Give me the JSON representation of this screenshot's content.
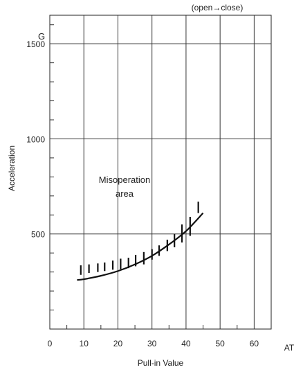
{
  "chart_data": {
    "type": "line",
    "title": "",
    "note": "(open→close)",
    "xlabel": "Pull-in Value",
    "ylabel": "Acceleration",
    "x_unit": "AT",
    "y_unit": "G",
    "xlim": [
      0,
      65
    ],
    "ylim": [
      0,
      1650
    ],
    "x_ticks": [
      0,
      10,
      20,
      30,
      40,
      50,
      60
    ],
    "y_ticks": [
      500,
      1000,
      1500
    ],
    "y_minor_step": 100,
    "x_minor_step": 5,
    "grid": true,
    "annotation": {
      "lines": [
        "Misoperation",
        "area"
      ],
      "x": 20,
      "y": 790
    },
    "series": [
      {
        "x": [
          8,
          10,
          15,
          20,
          25,
          30,
          35,
          40,
          45
        ],
        "values": [
          258,
          262,
          280,
          305,
          340,
          385,
          445,
          515,
          610
        ]
      }
    ],
    "hatch_marks": [
      {
        "x": 9.1,
        "y_bottom": 285,
        "y_top": 335
      },
      {
        "x": 11.5,
        "y_bottom": 295,
        "y_top": 340
      },
      {
        "x": 14.1,
        "y_bottom": 300,
        "y_top": 345
      },
      {
        "x": 16.1,
        "y_bottom": 305,
        "y_top": 350
      },
      {
        "x": 18.5,
        "y_bottom": 312,
        "y_top": 360
      },
      {
        "x": 20.8,
        "y_bottom": 315,
        "y_top": 370
      },
      {
        "x": 23.1,
        "y_bottom": 320,
        "y_top": 375
      },
      {
        "x": 25.2,
        "y_bottom": 330,
        "y_top": 390
      },
      {
        "x": 27.6,
        "y_bottom": 340,
        "y_top": 405
      },
      {
        "x": 30.0,
        "y_bottom": 365,
        "y_top": 420
      },
      {
        "x": 32.1,
        "y_bottom": 385,
        "y_top": 440
      },
      {
        "x": 34.5,
        "y_bottom": 410,
        "y_top": 470
      },
      {
        "x": 36.6,
        "y_bottom": 430,
        "y_top": 500
      },
      {
        "x": 38.8,
        "y_bottom": 455,
        "y_top": 550
      },
      {
        "x": 41.2,
        "y_bottom": 490,
        "y_top": 590
      },
      {
        "x": 43.6,
        "y_bottom": 610,
        "y_top": 670
      }
    ]
  }
}
